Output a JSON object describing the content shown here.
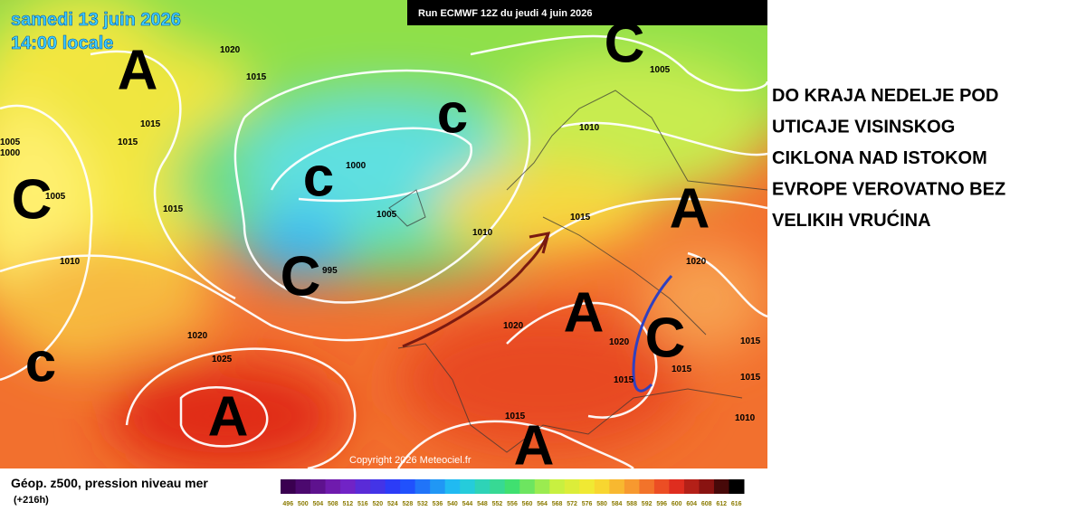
{
  "header": {
    "date": "samedi 13 juin 2026",
    "time": "14:00 locale",
    "run": "Run ECMWF 12Z du jeudi 4 juin 2026"
  },
  "copyright": "Copyright 2026 Meteociel.fr",
  "legend": {
    "title": "Géop. z500, pression niveau mer",
    "lead": "(+216h)",
    "scale": [
      496,
      500,
      504,
      508,
      512,
      516,
      520,
      524,
      528,
      532,
      536,
      540,
      544,
      548,
      552,
      556,
      560,
      564,
      568,
      572,
      576,
      580,
      584,
      588,
      592,
      596,
      600,
      604,
      608,
      612,
      616
    ]
  },
  "pressure_centers": [
    "A",
    "C",
    "c",
    "c",
    "C",
    "C",
    "c",
    "A",
    "A",
    "C",
    "A",
    "A"
  ],
  "isobar_labels": [
    "1020",
    "1015",
    "1015",
    "1015",
    "1005",
    "1000",
    "1005",
    "1015",
    "1010",
    "1000",
    "1005",
    "1010",
    "995",
    "1010",
    "1015",
    "1005",
    "1020",
    "1020",
    "1020",
    "1015",
    "1015",
    "1015",
    "1010",
    "1020",
    "1025",
    "1015",
    "1015"
  ],
  "annotation": [
    "DO KRAJA NEDELJE POD",
    "UTICAJE VISINSKOG",
    "CIKLONA NAD ISTOKOM",
    "EVROPE VEROVATNO BEZ",
    "VELIKIH VRUĆINA"
  ]
}
